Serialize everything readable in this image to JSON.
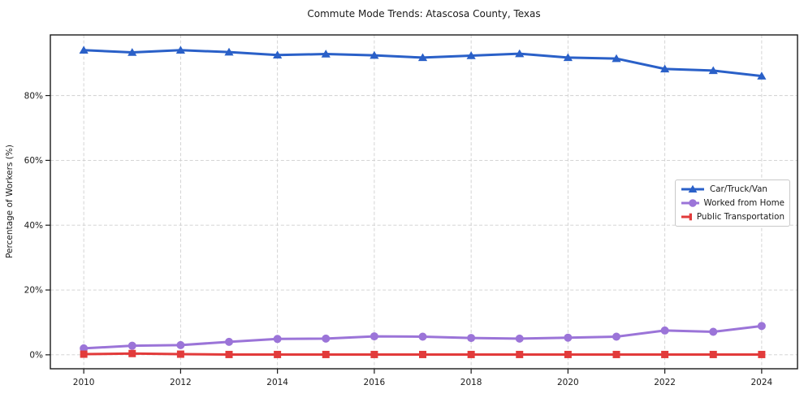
{
  "chart_data": {
    "type": "line",
    "title": "Commute Mode Trends: Atascosa County, Texas",
    "xlabel": "",
    "ylabel": "Percentage of Workers (%)",
    "x": [
      2010,
      2011,
      2012,
      2013,
      2014,
      2015,
      2016,
      2017,
      2018,
      2019,
      2020,
      2021,
      2022,
      2023,
      2024
    ],
    "series": [
      {
        "name": "Car/Truck/Van",
        "color": "#2a60c8",
        "marker": "triangle",
        "values": [
          94.0,
          93.3,
          94.0,
          93.4,
          92.5,
          92.8,
          92.4,
          91.7,
          92.3,
          92.9,
          91.7,
          91.4,
          88.2,
          87.7,
          86.0
        ]
      },
      {
        "name": "Worked from Home",
        "color": "#9b74d8",
        "marker": "circle",
        "values": [
          2.0,
          2.8,
          3.0,
          4.0,
          4.9,
          5.0,
          5.7,
          5.6,
          5.2,
          5.0,
          5.3,
          5.6,
          7.5,
          7.1,
          8.9
        ]
      },
      {
        "name": "Public Transportation",
        "color": "#e23b3b",
        "marker": "square",
        "values": [
          0.2,
          0.4,
          0.2,
          0.1,
          0.1,
          0.1,
          0.1,
          0.1,
          0.1,
          0.1,
          0.1,
          0.1,
          0.1,
          0.1,
          0.1
        ]
      }
    ],
    "xticks": [
      2010,
      2012,
      2014,
      2016,
      2018,
      2020,
      2022,
      2024
    ],
    "yticks": [
      0,
      20,
      40,
      60,
      80
    ],
    "ytick_labels": [
      "0%",
      "20%",
      "40%",
      "60%",
      "80%"
    ],
    "xlim": [
      2009.31,
      2024.74
    ],
    "ylim": [
      -4.3,
      98.7
    ],
    "grid": true,
    "grid_style": "dashed",
    "legend_position": "center-right",
    "colors": {
      "gridline": "#cfcfcf",
      "spine": "#1a1a1a",
      "text": "#1a1a1a",
      "background": "#ffffff"
    }
  }
}
